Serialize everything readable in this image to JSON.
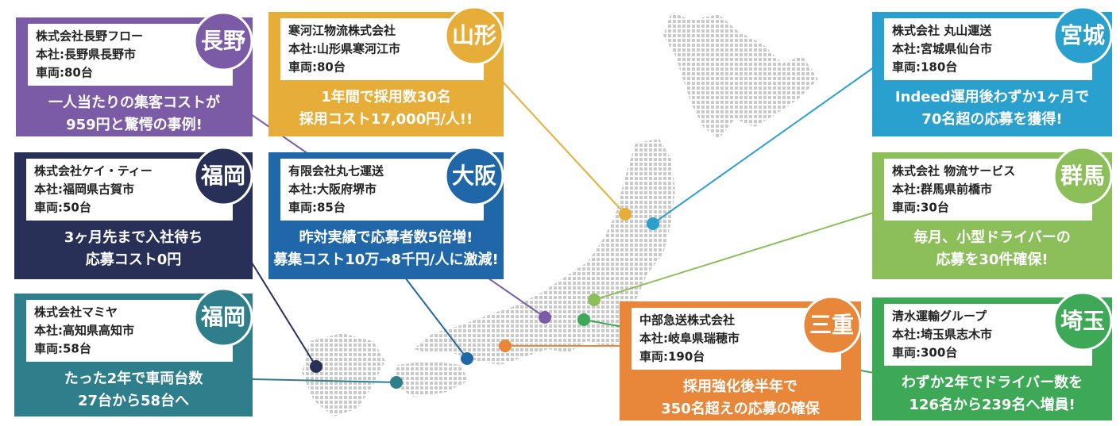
{
  "cases": [
    {
      "region": "長野",
      "company": "株式会社長野フロー",
      "hq": "本社:長野県長野市",
      "vehicles": "車両:80台",
      "headline": [
        "一人当たりの集客コストが",
        "959円と驚愕の事例!"
      ]
    },
    {
      "region": "山形",
      "company": "寒河江物流株式会社",
      "hq": "本社:山形県寒河江市",
      "vehicles": "車両:80台",
      "headline": [
        "1年間で採用数30名",
        "採用コスト17,000円/人!!"
      ]
    },
    {
      "region": "宮城",
      "company": "株式会社 丸山運送",
      "hq": "本社:宮城県仙台市",
      "vehicles": "車両:180台",
      "headline": [
        "Indeed運用後わずか1ヶ月で",
        "70名超の応募を獲得!"
      ]
    },
    {
      "region": "福岡",
      "company": "株式会社ケイ・ティー",
      "hq": "本社:福岡県古賀市",
      "vehicles": "車両:50台",
      "headline": [
        "3ヶ月先まで入社待ち",
        "応募コスト0円"
      ]
    },
    {
      "region": "大阪",
      "company": "有限会社丸七運送",
      "hq": "本社:大阪府堺市",
      "vehicles": "車両:85台",
      "headline": [
        "昨対実績で応募者数5倍増!",
        "募集コスト10万→8千円/人に激減!"
      ]
    },
    {
      "region": "群馬",
      "company": "株式会社 物流サービス",
      "hq": "本社:群馬県前橋市",
      "vehicles": "車両:30台",
      "headline": [
        "毎月、小型ドライバーの",
        "応募を30件確保!"
      ]
    },
    {
      "region": "福岡",
      "company": "株式会社マミヤ",
      "hq": "本社:高知県高知市",
      "vehicles": "車両:58台",
      "headline": [
        "たった2年で車両台数",
        "27台から58台へ"
      ]
    },
    {
      "region": "三重",
      "company": "中部急送株式会社",
      "hq": "本社:岐阜県瑞穂市",
      "vehicles": "車両:190台",
      "headline": [
        "採用強化後半年で",
        "350名超えの応募の確保"
      ]
    },
    {
      "region": "埼玉",
      "company": "清水運輸グループ",
      "hq": "本社:埼玉県志木市",
      "vehicles": "車両:300台",
      "headline": [
        "わずか2年でドライバー数を",
        "126名から239名へ増員!"
      ]
    }
  ]
}
